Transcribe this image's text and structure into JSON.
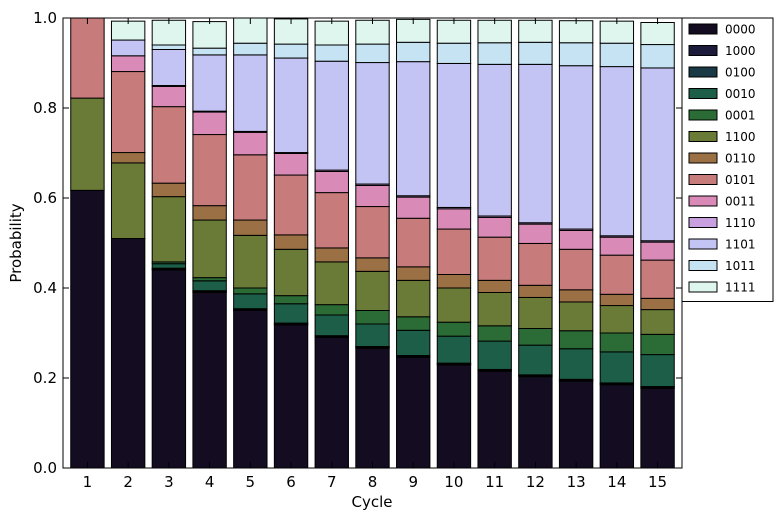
{
  "chart_data": {
    "type": "bar",
    "stacked": true,
    "categories": [
      "1",
      "2",
      "3",
      "4",
      "5",
      "6",
      "7",
      "8",
      "9",
      "10",
      "11",
      "12",
      "13",
      "14",
      "15"
    ],
    "xlabel": "Cycle",
    "ylabel": "Probability",
    "ylim": [
      0,
      1
    ],
    "yticks": [
      "0.0",
      "0.2",
      "0.4",
      "0.6",
      "0.8",
      "1.0"
    ],
    "grid": false,
    "legend_position": "outside-right-top",
    "series": [
      {
        "name": "0000",
        "color": "#140d21",
        "values": [
          0.617,
          0.51,
          0.44,
          0.39,
          0.35,
          0.318,
          0.29,
          0.266,
          0.246,
          0.229,
          0.215,
          0.203,
          0.193,
          0.185,
          0.177
        ]
      },
      {
        "name": "1000",
        "color": "#1c1b3c",
        "values": [
          0,
          0,
          0.002,
          0.002,
          0.002,
          0.002,
          0.002,
          0.002,
          0.002,
          0.002,
          0.002,
          0.002,
          0.002,
          0.002,
          0.002
        ]
      },
      {
        "name": "0100",
        "color": "#193a45",
        "values": [
          0,
          0,
          0.002,
          0.002,
          0.002,
          0.002,
          0.002,
          0.002,
          0.002,
          0.002,
          0.002,
          0.002,
          0.002,
          0.002,
          0.002
        ]
      },
      {
        "name": "0010",
        "color": "#1c5e47",
        "values": [
          0,
          0,
          0.01,
          0.022,
          0.033,
          0.043,
          0.046,
          0.05,
          0.056,
          0.06,
          0.063,
          0.066,
          0.068,
          0.069,
          0.071
        ]
      },
      {
        "name": "0001",
        "color": "#2b6b35",
        "values": [
          0,
          0,
          0.004,
          0.007,
          0.013,
          0.018,
          0.023,
          0.03,
          0.03,
          0.031,
          0.034,
          0.037,
          0.04,
          0.042,
          0.045
        ]
      },
      {
        "name": "1100",
        "color": "#6a7b37",
        "values": [
          0.205,
          0.168,
          0.145,
          0.128,
          0.117,
          0.103,
          0.095,
          0.087,
          0.081,
          0.076,
          0.074,
          0.069,
          0.064,
          0.061,
          0.055
        ]
      },
      {
        "name": "0110",
        "color": "#9b7045",
        "values": [
          0,
          0.023,
          0.03,
          0.032,
          0.034,
          0.032,
          0.031,
          0.03,
          0.03,
          0.03,
          0.027,
          0.027,
          0.027,
          0.025,
          0.025
        ]
      },
      {
        "name": "0101",
        "color": "#c77b7a",
        "values": [
          0.178,
          0.18,
          0.17,
          0.158,
          0.145,
          0.133,
          0.123,
          0.114,
          0.108,
          0.101,
          0.096,
          0.093,
          0.09,
          0.087,
          0.085
        ]
      },
      {
        "name": "0011",
        "color": "#d98ab6",
        "values": [
          0,
          0.035,
          0.045,
          0.05,
          0.05,
          0.048,
          0.047,
          0.047,
          0.047,
          0.045,
          0.044,
          0.043,
          0.042,
          0.04,
          0.04
        ]
      },
      {
        "name": "1110",
        "color": "#c9a0df",
        "values": [
          0,
          0,
          0.002,
          0.002,
          0.002,
          0.002,
          0.003,
          0.003,
          0.003,
          0.003,
          0.003,
          0.003,
          0.003,
          0.003,
          0.003
        ]
      },
      {
        "name": "1101",
        "color": "#c3c3f4",
        "values": [
          0,
          0.035,
          0.08,
          0.125,
          0.17,
          0.21,
          0.242,
          0.27,
          0.298,
          0.32,
          0.337,
          0.352,
          0.363,
          0.376,
          0.384
        ]
      },
      {
        "name": "1011",
        "color": "#c5e3f2",
        "values": [
          0,
          0,
          0.01,
          0.015,
          0.026,
          0.031,
          0.036,
          0.041,
          0.043,
          0.045,
          0.048,
          0.049,
          0.051,
          0.052,
          0.052
        ]
      },
      {
        "name": "1111",
        "color": "#dff6ef",
        "values": [
          0,
          0.042,
          0.055,
          0.059,
          0.056,
          0.056,
          0.053,
          0.053,
          0.051,
          0.051,
          0.05,
          0.049,
          0.049,
          0.049,
          0.049
        ]
      }
    ]
  }
}
